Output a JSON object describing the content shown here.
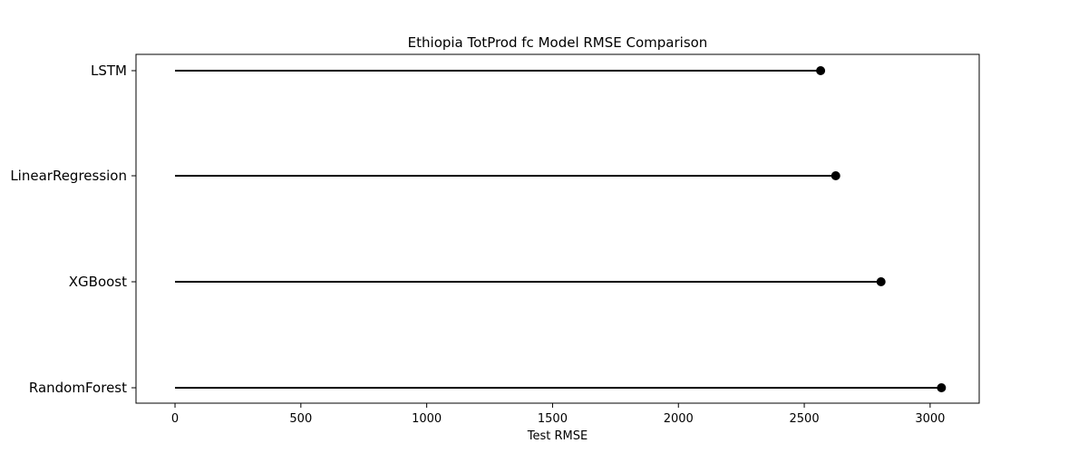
{
  "chart_data": {
    "type": "lollipop",
    "title": "Ethiopia TotProd fc Model RMSE Comparison",
    "xlabel": "Test RMSE",
    "ylabel": "",
    "orientation": "horizontal",
    "categories": [
      "LSTM",
      "LinearRegression",
      "XGBoost",
      "RandomForest"
    ],
    "values": [
      2565,
      2625,
      2805,
      3045
    ],
    "xlim": [
      -155,
      3195
    ],
    "xticks": [
      0,
      500,
      1000,
      1500,
      2000,
      2500,
      3000
    ],
    "xtick_labels": [
      "0",
      "500",
      "1000",
      "1500",
      "2000",
      "2500",
      "3000"
    ],
    "grid": false,
    "colors": {
      "stem": "#000000",
      "marker": "#000000",
      "axes": "#000000"
    }
  }
}
